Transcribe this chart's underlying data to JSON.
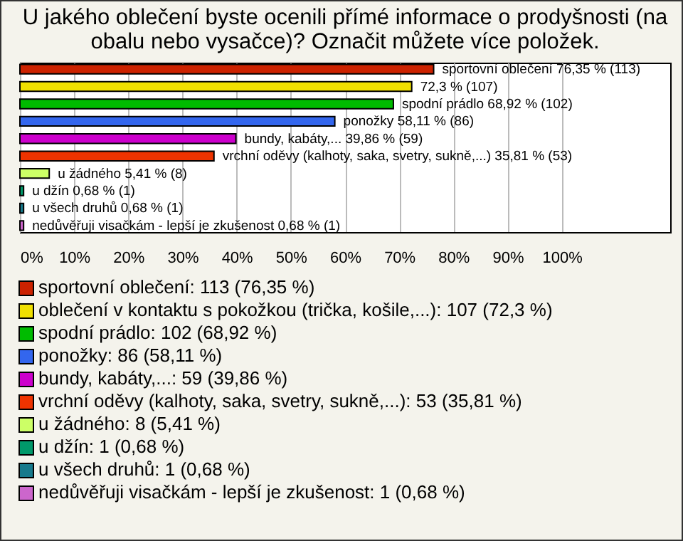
{
  "chart_data": {
    "type": "bar",
    "orientation": "horizontal",
    "title": "U jakého oblečení byste ocenili přímé informace o prodyšnosti (na obalu nebo vysačce)? Označit můžete více položek.",
    "categories": [
      null,
      null,
      null,
      null,
      null,
      null,
      null,
      null,
      null,
      null
    ],
    "series": [
      {
        "name": "sportovní oblečení: 113 (76,35 %)",
        "color": "#cc2200",
        "values": [
          76.35,
          null,
          null,
          null,
          null,
          null,
          null,
          null,
          null,
          null
        ],
        "value_labels": [
          "sportovní oblečení 76,35 % (113)",
          null,
          null,
          null,
          null,
          null,
          null,
          null,
          null,
          null
        ]
      },
      {
        "name": "oblečení v kontaktu s pokožkou (trička, košile,...): 107 (72,3 %)",
        "color": "#f0e000",
        "values": [
          null,
          72.3,
          null,
          null,
          null,
          null,
          null,
          null,
          null,
          null
        ],
        "value_labels": [
          null,
          "72,3 % (107)",
          null,
          null,
          null,
          null,
          null,
          null,
          null,
          null
        ]
      },
      {
        "name": "spodní prádlo: 102 (68,92 %)",
        "color": "#00bb00",
        "values": [
          null,
          null,
          68.92,
          null,
          null,
          null,
          null,
          null,
          null,
          null
        ],
        "value_labels": [
          null,
          null,
          "spodní prádlo 68,92 % (102)",
          null,
          null,
          null,
          null,
          null,
          null,
          null
        ]
      },
      {
        "name": "ponožky: 86 (58,11 %)",
        "color": "#3366ee",
        "values": [
          null,
          null,
          null,
          58.11,
          null,
          null,
          null,
          null,
          null,
          null
        ],
        "value_labels": [
          null,
          null,
          null,
          "ponožky 58,11 % (86)",
          null,
          null,
          null,
          null,
          null,
          null
        ]
      },
      {
        "name": "bundy, kabáty,...: 59 (39,86 %)",
        "color": "#cc00cc",
        "values": [
          null,
          null,
          null,
          null,
          39.86,
          null,
          null,
          null,
          null,
          null
        ],
        "value_labels": [
          null,
          null,
          null,
          null,
          "bundy, kabáty,... 39,86 % (59)",
          null,
          null,
          null,
          null,
          null
        ]
      },
      {
        "name": "vrchní oděvy (kalhoty, saka, svetry, sukně,...): 53 (35,81 %)",
        "color": "#ee3300",
        "values": [
          null,
          null,
          null,
          null,
          null,
          35.81,
          null,
          null,
          null,
          null
        ],
        "value_labels": [
          null,
          null,
          null,
          null,
          null,
          "vrchní oděvy (kalhoty, saka, svetry, sukně,...) 35,81 % (53)",
          null,
          null,
          null,
          null
        ]
      },
      {
        "name": "u žádného: 8 (5,41 %)",
        "color": "#ccff66",
        "values": [
          null,
          null,
          null,
          null,
          null,
          null,
          5.41,
          null,
          null,
          null
        ],
        "value_labels": [
          null,
          null,
          null,
          null,
          null,
          null,
          "u žádného 5,41 % (8)",
          null,
          null,
          null
        ]
      },
      {
        "name": "u džín: 1 (0,68 %)",
        "color": "#00996a",
        "values": [
          null,
          null,
          null,
          null,
          null,
          null,
          null,
          0.68,
          null,
          null
        ],
        "value_labels": [
          null,
          null,
          null,
          null,
          null,
          null,
          null,
          "u džín 0,68 % (1)",
          null,
          null
        ]
      },
      {
        "name": "u všech druhů: 1 (0,68 %)",
        "color": "#167a8c",
        "values": [
          null,
          null,
          null,
          null,
          null,
          null,
          null,
          null,
          0.68,
          null
        ],
        "value_labels": [
          null,
          null,
          null,
          null,
          null,
          null,
          null,
          null,
          "u všech druhů 0,68 % (1)",
          null
        ]
      },
      {
        "name": "nedůvěřuji visačkám - lepší je zkušenost: 1 (0,68 %)",
        "color": "#cc66cc",
        "values": [
          null,
          null,
          null,
          null,
          null,
          null,
          null,
          null,
          null,
          0.68
        ],
        "value_labels": [
          null,
          null,
          null,
          null,
          null,
          null,
          null,
          null,
          null,
          "nedůvěřuji visačkám - lepší je zkušenost 0,68 % (1)"
        ]
      }
    ],
    "xlim": [
      0,
      120
    ],
    "xticks": [
      {
        "value": 0,
        "label": "0%"
      },
      {
        "value": 10,
        "label": "10%"
      },
      {
        "value": 20,
        "label": "20%"
      },
      {
        "value": 30,
        "label": "30%"
      },
      {
        "value": 40,
        "label": "40%"
      },
      {
        "value": 50,
        "label": "50%"
      },
      {
        "value": 60,
        "label": "60%"
      },
      {
        "value": 70,
        "label": "70%"
      },
      {
        "value": 80,
        "label": "80%"
      },
      {
        "value": 90,
        "label": "90%"
      },
      {
        "value": 100,
        "label": "100%"
      }
    ],
    "grid": "x",
    "legend": "bottom",
    "tick_labels": "x"
  }
}
